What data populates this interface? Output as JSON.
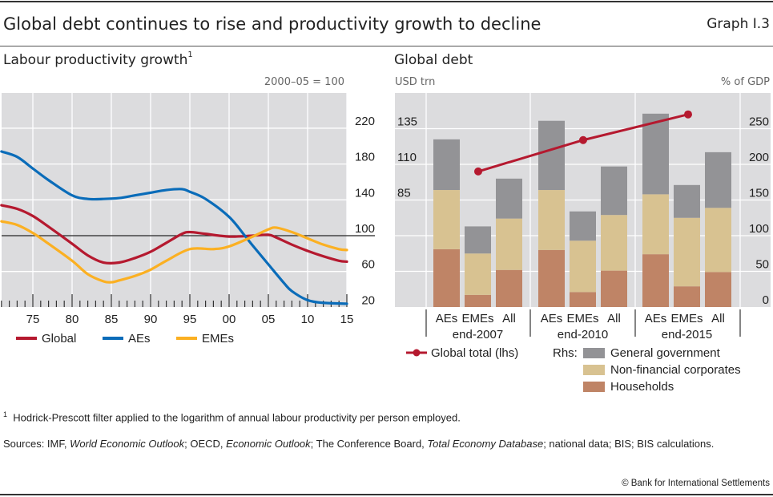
{
  "header": {
    "title": "Global debt continues to rise and productivity growth to decline",
    "graph_number": "Graph I.3"
  },
  "left_panel": {
    "title": "Labour productivity growth",
    "title_footnote": "1",
    "unit_label": "2000–05 = 100"
  },
  "right_panel": {
    "title": "Global debt",
    "left_unit": "USD trn",
    "right_unit": "% of GDP"
  },
  "footnote": {
    "marker": "1",
    "text": "Hodrick-Prescott filter applied to the logarithm of annual labour productivity per person employed."
  },
  "sources": {
    "prefix": "Sources: IMF, ",
    "weo": "World Economic Outlook",
    "sep1": "; OECD, ",
    "eo": "Economic Outlook",
    "sep2": "; The Conference Board, ",
    "ted": "Total Economy Database",
    "suffix": "; national data; BIS; BIS calculations."
  },
  "copyright": "© Bank for International Settlements",
  "chart_data": [
    {
      "type": "line",
      "title": "Labour productivity growth",
      "ylabel": "2000–05 = 100",
      "ylim": [
        20,
        240
      ],
      "yticks": [
        20,
        60,
        100,
        140,
        180,
        220
      ],
      "reference_line": 100,
      "xlim": [
        1971,
        2016
      ],
      "xticks": [
        1975,
        1980,
        1985,
        1990,
        1995,
        2000,
        2005,
        2010,
        2015
      ],
      "xtick_labels": [
        "75",
        "80",
        "85",
        "90",
        "95",
        "00",
        "05",
        "10",
        "15"
      ],
      "grid": true,
      "legend_position": "bottom",
      "series": [
        {
          "name": "Global",
          "color": "#b5192f",
          "x": [
            1971,
            1973,
            1975,
            1977,
            1980,
            1982,
            1984,
            1986,
            1988,
            1990,
            1992,
            1994,
            1995,
            1997,
            2000,
            2003,
            2005,
            2006,
            2008,
            2010,
            2012,
            2014,
            2015
          ],
          "values": [
            134,
            130,
            122,
            110,
            91,
            78,
            70,
            70,
            75,
            82,
            92,
            102,
            104,
            102,
            99,
            100,
            101,
            98,
            90,
            83,
            77,
            72,
            71
          ]
        },
        {
          "name": "AEs",
          "color": "#0a6cb9",
          "x": [
            1971,
            1973,
            1975,
            1977,
            1980,
            1982,
            1984,
            1986,
            1988,
            1990,
            1992,
            1994,
            1995,
            1997,
            2000,
            2002,
            2003,
            2005,
            2007,
            2008,
            2010,
            2012,
            2015
          ],
          "values": [
            194,
            188,
            175,
            162,
            145,
            141,
            141,
            142,
            145,
            148,
            151,
            152,
            149,
            141,
            121,
            100,
            89,
            68,
            47,
            38,
            28,
            25,
            24
          ]
        },
        {
          "name": "EMEs",
          "color": "#fbb022",
          "x": [
            1971,
            1973,
            1975,
            1977,
            1980,
            1982,
            1984,
            1985,
            1986,
            1988,
            1990,
            1992,
            1995,
            1998,
            2000,
            2003,
            2005,
            2006,
            2008,
            2010,
            2012,
            2014,
            2015
          ],
          "values": [
            116,
            112,
            103,
            91,
            72,
            57,
            49,
            48,
            50,
            55,
            62,
            72,
            85,
            85,
            88,
            99,
            107,
            109,
            104,
            97,
            90,
            85,
            84
          ]
        }
      ]
    },
    {
      "type": "bar",
      "stacked": true,
      "title": "Global debt",
      "ylabel_left": "USD trn",
      "ylabel_right": "% of GDP",
      "ylim_left": [
        10,
        160
      ],
      "yticks_left": [
        85,
        110,
        135
      ],
      "ylim_right": [
        0,
        300
      ],
      "yticks_right": [
        0,
        50,
        100,
        150,
        200,
        250
      ],
      "groups": [
        "end-2007",
        "end-2010",
        "end-2015"
      ],
      "categories": [
        "AEs",
        "EMEs",
        "All"
      ],
      "grid": true,
      "legend_position": "bottom",
      "series": [
        {
          "name": "Households",
          "axis": "rhs",
          "color": "#bf8466",
          "values": [
            [
              81,
              17,
              52
            ],
            [
              80,
              21,
              51
            ],
            [
              74,
              29,
              49
            ]
          ]
        },
        {
          "name": "Non-financial corporates",
          "axis": "rhs",
          "color": "#d8c291",
          "values": [
            [
              83,
              58,
              72
            ],
            [
              84,
              72,
              78
            ],
            [
              84,
              96,
              90
            ]
          ]
        },
        {
          "name": "General government",
          "axis": "rhs",
          "color": "#939396",
          "values": [
            [
              71,
              38,
              56
            ],
            [
              97,
              41,
              68
            ],
            [
              113,
              46,
              78
            ]
          ]
        }
      ],
      "line_series": {
        "name": "Global total (lhs)",
        "axis": "lhs",
        "color": "#b5192f",
        "x": [
          "end-2007",
          "end-2010",
          "end-2015"
        ],
        "values": [
          105,
          127,
          145
        ]
      },
      "legend": {
        "line_label": "Global total (lhs)",
        "rhs_prefix": "Rhs:",
        "items": [
          "General government",
          "Non-financial corporates",
          "Households"
        ]
      }
    }
  ]
}
